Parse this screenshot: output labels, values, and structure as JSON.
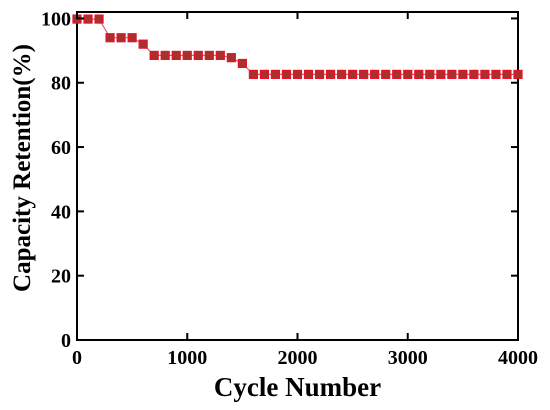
{
  "chart_data": {
    "type": "line",
    "xlabel": "Cycle Number",
    "ylabel": "Capacity Retention(%)",
    "xlim": [
      0,
      4000
    ],
    "ylim": [
      0,
      102
    ],
    "xticks": [
      0,
      1000,
      2000,
      3000,
      4000
    ],
    "yticks": [
      0,
      20,
      40,
      60,
      80,
      100
    ],
    "grid": false,
    "legend": "none",
    "colors": {
      "marker_fill": "#a8322b",
      "marker_stroke": "#e8102a",
      "line": "#e35a7a"
    },
    "series": [
      {
        "x": [
          0,
          100,
          200,
          300,
          400,
          500,
          600,
          700,
          800,
          900,
          1000,
          1100,
          1200,
          1300,
          1400,
          1500,
          1600,
          1700,
          1800,
          1900,
          2000,
          2100,
          2200,
          2300,
          2400,
          2500,
          2600,
          2700,
          2800,
          2900,
          3000,
          3100,
          3200,
          3300,
          3400,
          3500,
          3600,
          3700,
          3800,
          3900,
          4000
        ],
        "y": [
          99.8,
          99.8,
          99.8,
          94,
          94,
          94,
          92,
          88.5,
          88.5,
          88.5,
          88.5,
          88.5,
          88.5,
          88.5,
          87.8,
          86,
          82.6,
          82.6,
          82.6,
          82.6,
          82.6,
          82.6,
          82.6,
          82.6,
          82.6,
          82.6,
          82.6,
          82.6,
          82.6,
          82.6,
          82.6,
          82.6,
          82.6,
          82.6,
          82.6,
          82.6,
          82.6,
          82.6,
          82.6,
          82.6,
          82.6
        ]
      }
    ]
  }
}
